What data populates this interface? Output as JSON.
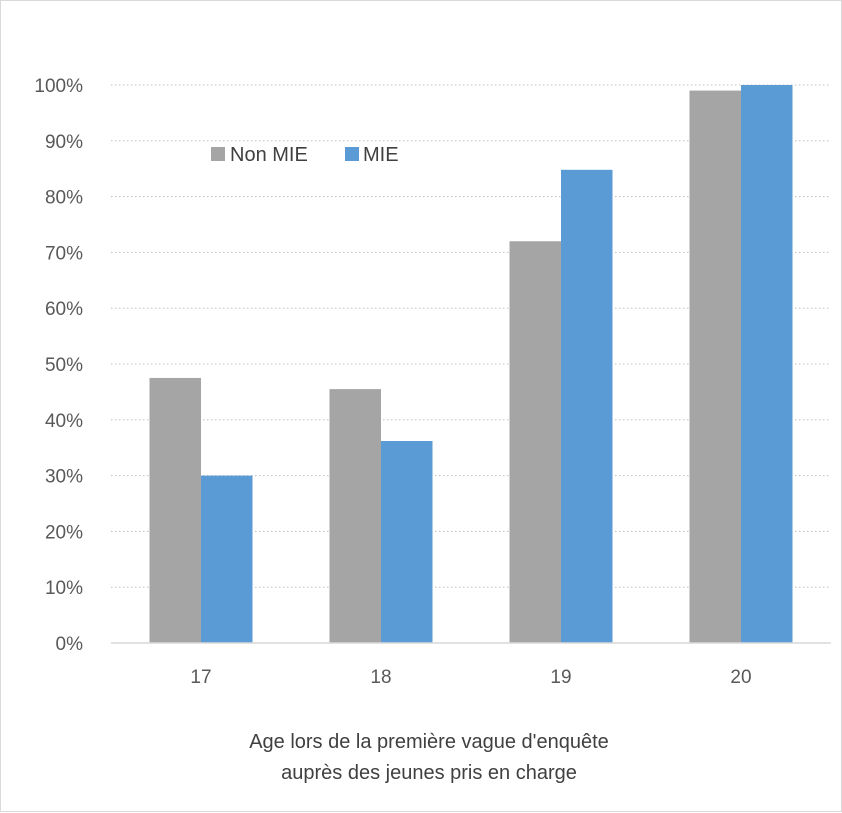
{
  "chart_data": {
    "type": "bar",
    "categories": [
      "17",
      "18",
      "19",
      "20"
    ],
    "series": [
      {
        "name": "Non MIE",
        "values": [
          47.5,
          45.5,
          72,
          99
        ],
        "color": "#a5a5a5"
      },
      {
        "name": "MIE",
        "values": [
          30,
          36.2,
          84.8,
          100
        ],
        "color": "#5b9bd5"
      }
    ],
    "ylim": [
      0,
      100
    ],
    "y_ticks": [
      "0%",
      "10%",
      "20%",
      "30%",
      "40%",
      "50%",
      "60%",
      "70%",
      "80%",
      "90%",
      "100%"
    ],
    "xlabel_lines": [
      "Age lors de la première vague d'enquête",
      "auprès des jeunes pris en charge"
    ],
    "grid": "horizontal dotted",
    "legend_position": "top-left, inside plot"
  }
}
